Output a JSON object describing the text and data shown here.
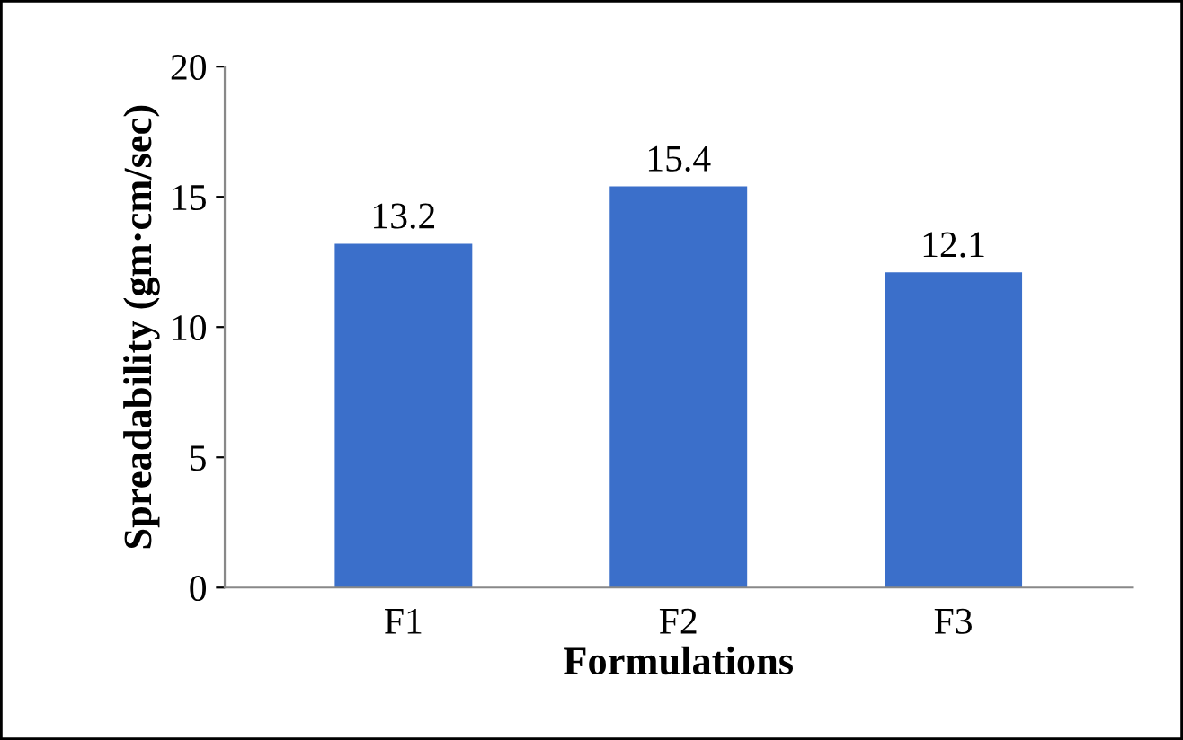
{
  "chart_data": {
    "type": "bar",
    "xlabel": "Formulations",
    "ylabel": "Spreadability (gm·cm/sec)",
    "categories": [
      "F1",
      "F2",
      "F3"
    ],
    "values": [
      13.2,
      15.4,
      12.1
    ],
    "color": "#3b6fca",
    "ylim": [
      0,
      20
    ],
    "yticks": [
      0,
      5,
      10,
      15,
      20
    ],
    "grid": false,
    "data_labels": true
  }
}
